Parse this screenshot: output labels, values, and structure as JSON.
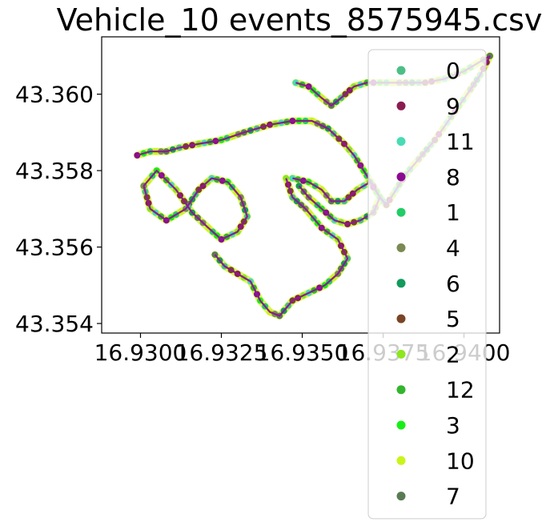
{
  "chart_data": {
    "type": "scatter",
    "title": "Vehicle_10 events_8575945.csv",
    "xlabel": "",
    "ylabel": "",
    "xlim": [
      16.9288,
      16.9411
    ],
    "ylim": [
      43.35375,
      43.3615
    ],
    "x_ticks": [
      "16.9300",
      "16.9325",
      "16.9350",
      "16.9375",
      "16.9400"
    ],
    "y_ticks": [
      "43.354",
      "43.356",
      "43.358",
      "43.360"
    ],
    "grid": false,
    "legend_position": "right",
    "series": [
      {
        "name": "0",
        "color": "#4cbf87"
      },
      {
        "name": "9",
        "color": "#8a1d4f"
      },
      {
        "name": "11",
        "color": "#48dbb4"
      },
      {
        "name": "8",
        "color": "#8b0a91"
      },
      {
        "name": "1",
        "color": "#22cc66"
      },
      {
        "name": "4",
        "color": "#7a8a52"
      },
      {
        "name": "6",
        "color": "#139a5c"
      },
      {
        "name": "5",
        "color": "#7a4425"
      },
      {
        "name": "2",
        "color": "#8de61e"
      },
      {
        "name": "12",
        "color": "#33b52e"
      },
      {
        "name": "3",
        "color": "#16ef16"
      },
      {
        "name": "10",
        "color": "#c9f51a"
      },
      {
        "name": "7",
        "color": "#5a7a55"
      }
    ],
    "track": {
      "line_color": "#8b1a8f",
      "main_points": [
        [
          16.9299,
          43.3584
        ],
        [
          16.9303,
          43.3585
        ],
        [
          16.9308,
          43.3585
        ],
        [
          16.9312,
          43.3586
        ],
        [
          16.9318,
          43.3587
        ],
        [
          16.9325,
          43.3588
        ],
        [
          16.9332,
          43.359
        ],
        [
          16.934,
          43.3592
        ],
        [
          16.9347,
          43.3593
        ],
        [
          16.9353,
          43.3593
        ],
        [
          16.9358,
          43.3591
        ],
        [
          16.9363,
          43.3587
        ],
        [
          16.9366,
          43.3584
        ],
        [
          16.9369,
          43.358
        ],
        [
          16.9372,
          43.3576
        ],
        [
          16.9374,
          43.3573
        ],
        [
          16.9376,
          43.3571
        ],
        [
          16.9379,
          43.3575
        ],
        [
          16.9382,
          43.3579
        ],
        [
          16.9386,
          43.3583
        ],
        [
          16.9391,
          43.3588
        ],
        [
          16.9396,
          43.3594
        ],
        [
          16.9401,
          43.36
        ],
        [
          16.9405,
          43.3605
        ],
        [
          16.9408,
          43.361
        ]
      ],
      "upper_points": [
        [
          16.9348,
          43.3603
        ],
        [
          16.9352,
          43.3602
        ],
        [
          16.9356,
          43.3599
        ],
        [
          16.9359,
          43.3597
        ],
        [
          16.9362,
          43.3599
        ],
        [
          16.9366,
          43.3602
        ],
        [
          16.937,
          43.3603
        ],
        [
          16.9376,
          43.3603
        ],
        [
          16.9382,
          43.3603
        ],
        [
          16.9388,
          43.3603
        ],
        [
          16.9394,
          43.3604
        ],
        [
          16.94,
          43.3606
        ],
        [
          16.9404,
          43.3608
        ],
        [
          16.9408,
          43.361
        ]
      ],
      "west_loop": [
        [
          16.9301,
          43.3576
        ],
        [
          16.9303,
          43.357
        ],
        [
          16.9308,
          43.3567
        ],
        [
          16.9314,
          43.357
        ],
        [
          16.9318,
          43.3575
        ],
        [
          16.9322,
          43.3578
        ],
        [
          16.9327,
          43.3577
        ],
        [
          16.9331,
          43.3573
        ],
        [
          16.9333,
          43.3568
        ],
        [
          16.933,
          43.3564
        ],
        [
          16.9325,
          43.3562
        ],
        [
          16.9321,
          43.3565
        ],
        [
          16.9316,
          43.3569
        ],
        [
          16.9311,
          43.3575
        ],
        [
          16.9305,
          43.358
        ],
        [
          16.9301,
          43.3576
        ]
      ],
      "south_loop": [
        [
          16.9323,
          43.3558
        ],
        [
          16.9326,
          43.3555
        ],
        [
          16.933,
          43.3553
        ],
        [
          16.9334,
          43.3551
        ],
        [
          16.9337,
          43.3546
        ],
        [
          16.934,
          43.3543
        ],
        [
          16.9343,
          43.3542
        ],
        [
          16.9347,
          43.3546
        ],
        [
          16.9352,
          43.3548
        ],
        [
          16.9357,
          43.355
        ],
        [
          16.9361,
          43.3553
        ],
        [
          16.9364,
          43.3557
        ],
        [
          16.9361,
          43.3562
        ],
        [
          16.9356,
          43.3565
        ],
        [
          16.9351,
          43.357
        ],
        [
          16.9347,
          43.3573
        ],
        [
          16.9345,
          43.3578
        ]
      ],
      "east_loop": [
        [
          16.9347,
          43.3578
        ],
        [
          16.9352,
          43.3577
        ],
        [
          16.9356,
          43.3575
        ],
        [
          16.9359,
          43.3572
        ],
        [
          16.9363,
          43.3572
        ],
        [
          16.9367,
          43.3575
        ],
        [
          16.9371,
          43.3577
        ],
        [
          16.9374,
          43.3573
        ],
        [
          16.9372,
          43.3569
        ],
        [
          16.9368,
          43.3567
        ],
        [
          16.9364,
          43.3566
        ],
        [
          16.936,
          43.3567
        ],
        [
          16.9356,
          43.357
        ],
        [
          16.9352,
          43.3573
        ],
        [
          16.9349,
          43.3576
        ]
      ]
    }
  }
}
